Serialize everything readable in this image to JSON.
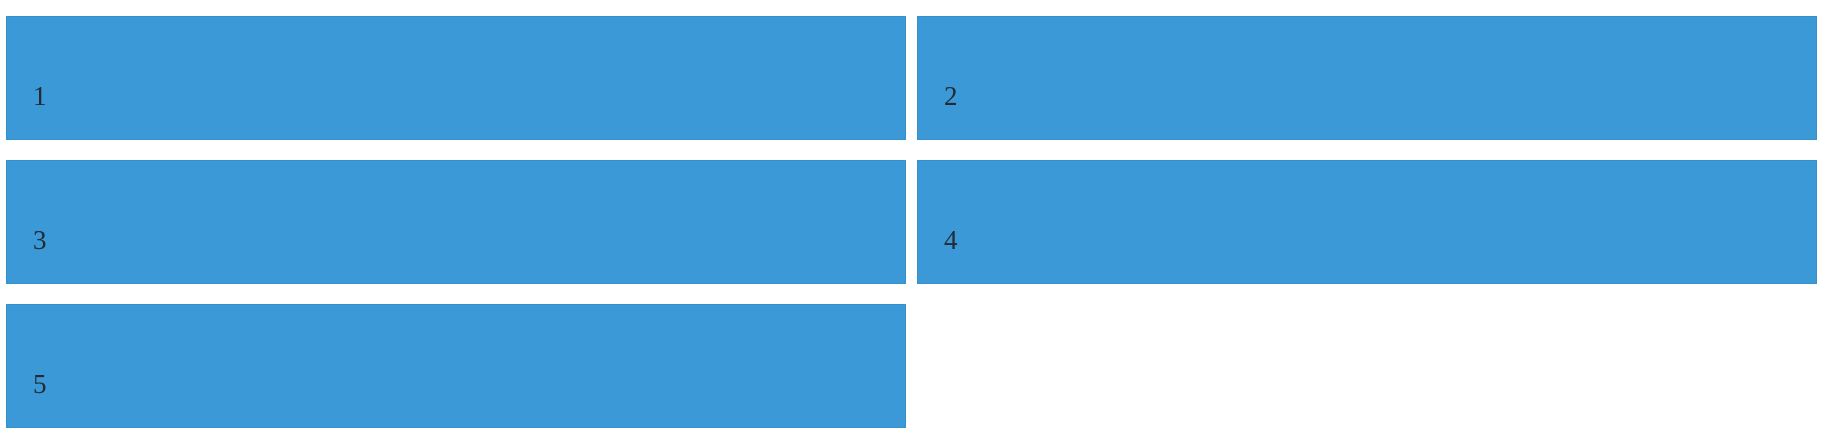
{
  "tiles": [
    {
      "label": "1"
    },
    {
      "label": "2"
    },
    {
      "label": "3"
    },
    {
      "label": "4"
    },
    {
      "label": "5"
    }
  ],
  "colors": {
    "tile_background": "#3a99d6",
    "tile_text": "#222b33",
    "page_background": "#ffffff"
  }
}
